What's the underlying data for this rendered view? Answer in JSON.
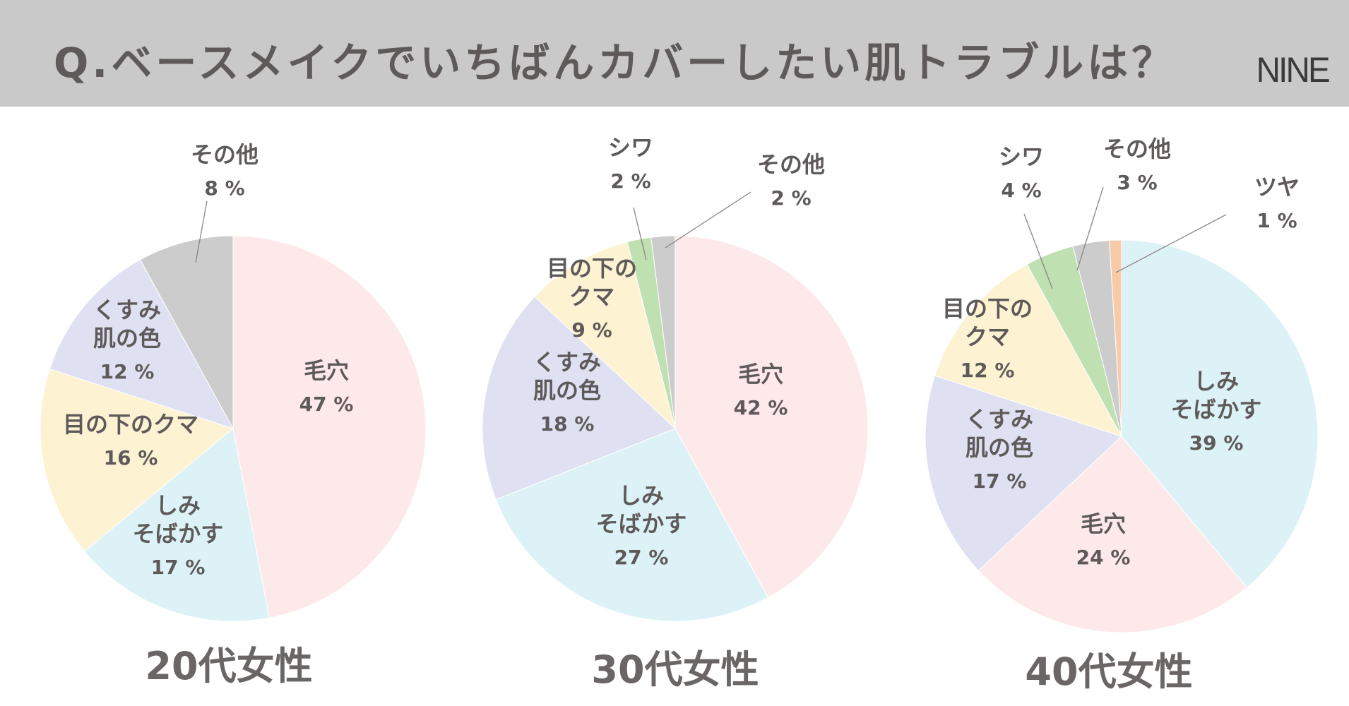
{
  "header": {
    "title": "Q.ベースメイクでいちばんカバーしたい肌トラブルは？",
    "logo": "NINE",
    "bg_color": "#c9c9c9"
  },
  "chart_data": [
    {
      "type": "pie",
      "title": "20代女性",
      "unit": "%",
      "slices": [
        {
          "label": "毛穴",
          "value": 47,
          "color": "#fde8ea"
        },
        {
          "label": "しみそばかす",
          "value": 17,
          "color": "#dcf2f7"
        },
        {
          "label": "目の下のクマ",
          "value": 16,
          "color": "#fdf2d2"
        },
        {
          "label": "くすみ肌の色",
          "value": 12,
          "color": "#dfe1f2"
        },
        {
          "label": "その他",
          "value": 8,
          "color": "#cccccc"
        }
      ],
      "texts": [
        {
          "lines": [
            "毛穴"
          ],
          "pct": "47 %"
        },
        {
          "lines": [
            "しみ",
            "そばかす"
          ],
          "pct": "17 %"
        },
        {
          "lines": [
            "目の下のクマ"
          ],
          "pct": "16 %"
        },
        {
          "lines": [
            "くすみ",
            "肌の色"
          ],
          "pct": "12 %"
        },
        {
          "lines": [
            "その他"
          ],
          "pct": "8 %"
        }
      ]
    },
    {
      "type": "pie",
      "title": "30代女性",
      "unit": "%",
      "slices": [
        {
          "label": "毛穴",
          "value": 42,
          "color": "#fde8ea"
        },
        {
          "label": "しみそばかす",
          "value": 27,
          "color": "#dcf2f7"
        },
        {
          "label": "くすみ肌の色",
          "value": 18,
          "color": "#dfe1f2"
        },
        {
          "label": "目の下のクマ",
          "value": 9,
          "color": "#fdf2d2"
        },
        {
          "label": "シワ",
          "value": 2,
          "color": "#bfe0b0"
        },
        {
          "label": "その他",
          "value": 2,
          "color": "#cccccc"
        }
      ],
      "texts": [
        {
          "lines": [
            "毛穴"
          ],
          "pct": "42 %"
        },
        {
          "lines": [
            "しみ",
            "そばかす"
          ],
          "pct": "27 %"
        },
        {
          "lines": [
            "くすみ",
            "肌の色"
          ],
          "pct": "18 %"
        },
        {
          "lines": [
            "目の下の",
            "クマ"
          ],
          "pct": "9 %"
        },
        {
          "lines": [
            "シワ"
          ],
          "pct": "2 %"
        },
        {
          "lines": [
            "その他"
          ],
          "pct": "2 %"
        }
      ]
    },
    {
      "type": "pie",
      "title": "40代女性",
      "unit": "%",
      "slices": [
        {
          "label": "しみそばかす",
          "value": 39,
          "color": "#dcf2f7"
        },
        {
          "label": "毛穴",
          "value": 24,
          "color": "#fde8ea"
        },
        {
          "label": "くすみ肌の色",
          "value": 17,
          "color": "#dfe1f2"
        },
        {
          "label": "目の下のクマ",
          "value": 12,
          "color": "#fdf2d2"
        },
        {
          "label": "シワ",
          "value": 4,
          "color": "#bfe0b0"
        },
        {
          "label": "その他",
          "value": 3,
          "color": "#cccccc"
        },
        {
          "label": "ツヤ",
          "value": 1,
          "color": "#f8cba8"
        }
      ],
      "texts": [
        {
          "lines": [
            "しみ",
            "そばかす"
          ],
          "pct": "39 %"
        },
        {
          "lines": [
            "毛穴"
          ],
          "pct": "24 %"
        },
        {
          "lines": [
            "くすみ",
            "肌の色"
          ],
          "pct": "17 %"
        },
        {
          "lines": [
            "目の下の",
            "クマ"
          ],
          "pct": "12 %"
        },
        {
          "lines": [
            "シワ"
          ],
          "pct": "4 %"
        },
        {
          "lines": [
            "その他"
          ],
          "pct": "3 %"
        },
        {
          "lines": [
            "ツヤ"
          ],
          "pct": "1 %"
        }
      ]
    }
  ]
}
